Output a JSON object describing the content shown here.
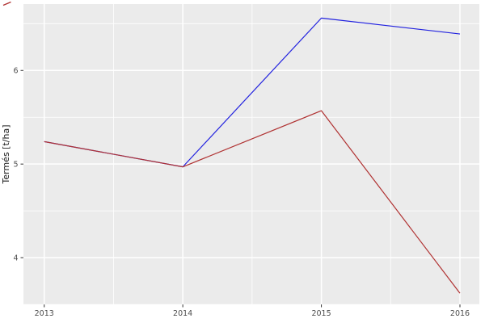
{
  "figure": {
    "y_axis_title": "Termés [t/ha]",
    "background_color": "#FFFFFF",
    "panel_color": "#EBEBEB",
    "grid_color": "#FFFFFF",
    "tick_label_color": "#4D4D4D",
    "tick_mark_color": "#333333",
    "axis_title_color": "#1A1A1A"
  },
  "chart_data": {
    "type": "line",
    "title": "",
    "xlabel": "",
    "ylabel": "Termés [t/ha]",
    "x": [
      2013,
      2014,
      2015,
      2016
    ],
    "series": [
      {
        "name": "blue-series",
        "color": "#2222DF",
        "values": [
          5.24,
          4.97,
          6.56,
          6.39
        ]
      },
      {
        "name": "red-series",
        "color": "#B03232",
        "values": [
          5.24,
          4.97,
          5.57,
          3.62
        ]
      }
    ],
    "x_ticks": [
      2013,
      2014,
      2015,
      2016
    ],
    "y_ticks": [
      4,
      5,
      6
    ],
    "x_range": [
      2012.85,
      2016.14
    ],
    "y_range": [
      3.5,
      6.71
    ],
    "grid": "major-and-minor",
    "legend": "none"
  }
}
